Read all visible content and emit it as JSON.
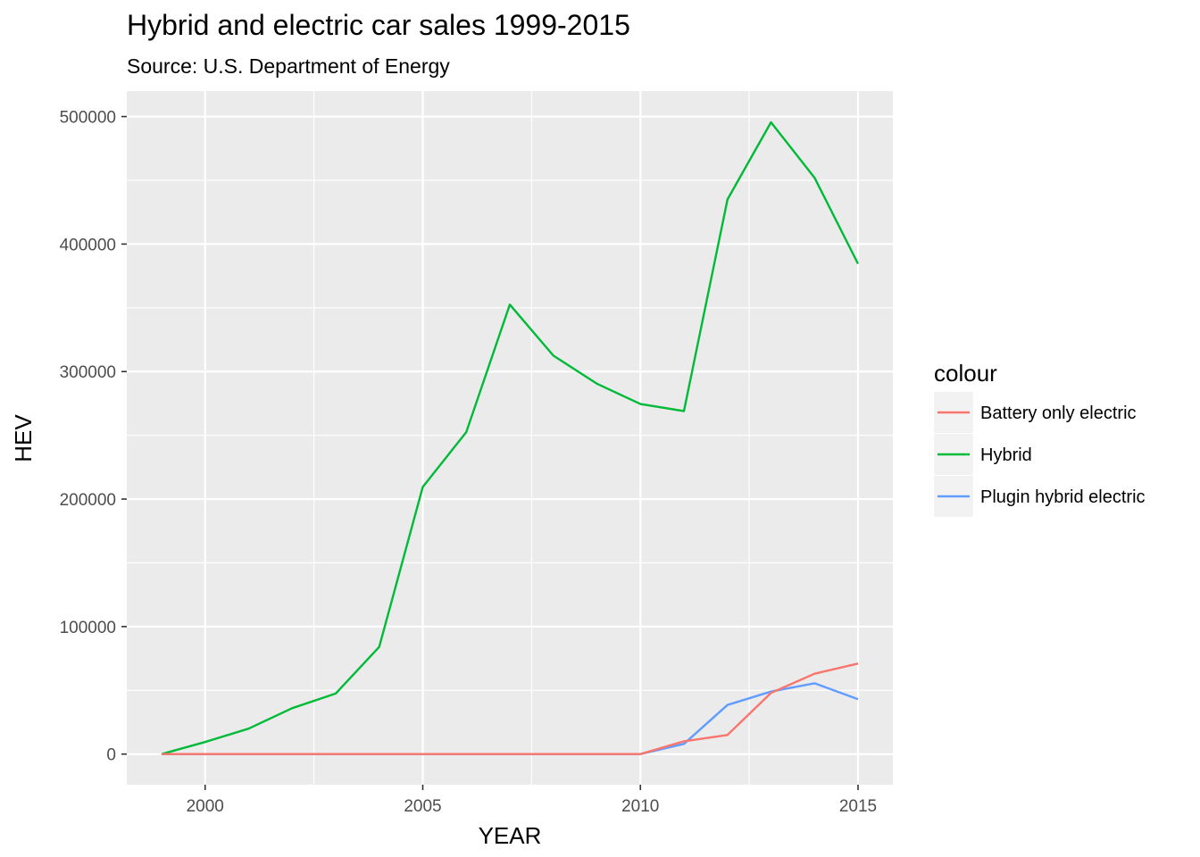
{
  "chart_data": {
    "type": "line",
    "title": "Hybrid and electric car sales 1999-2015",
    "subtitle": "Source:  U.S. Department of Energy",
    "xlabel": "YEAR",
    "ylabel": "HEV",
    "x": [
      1999,
      2000,
      2001,
      2002,
      2003,
      2004,
      2005,
      2006,
      2007,
      2008,
      2009,
      2010,
      2011,
      2012,
      2013,
      2014,
      2015
    ],
    "xlim": [
      1998.2,
      2015.8
    ],
    "ylim": [
      -24000,
      520000
    ],
    "x_ticks": [
      2000,
      2005,
      2010,
      2015
    ],
    "x_tick_labels": [
      "2000",
      "2005",
      "2010",
      "2015"
    ],
    "y_ticks": [
      0,
      100000,
      200000,
      300000,
      400000,
      500000
    ],
    "y_tick_labels": [
      "0",
      "100000",
      "200000",
      "300000",
      "400000",
      "500000"
    ],
    "grid": true,
    "legend": {
      "title": "colour",
      "position": "right",
      "entries": [
        "Battery only electric",
        "Hybrid",
        "Plugin hybrid electric"
      ]
    },
    "series": [
      {
        "name": "Battery only electric",
        "color": "#F8766D",
        "values": [
          0,
          0,
          0,
          0,
          0,
          0,
          0,
          0,
          0,
          0,
          0,
          0,
          10000,
          15000,
          48000,
          63000,
          71000
        ]
      },
      {
        "name": "Hybrid",
        "color": "#00BA38",
        "values": [
          0,
          9500,
          20000,
          36000,
          47500,
          84000,
          209500,
          252500,
          352500,
          312500,
          290500,
          274500,
          269000,
          435000,
          495500,
          452000,
          384500
        ]
      },
      {
        "name": "Plugin hybrid electric",
        "color": "#619CFF",
        "values": [
          0,
          0,
          0,
          0,
          0,
          0,
          0,
          0,
          0,
          0,
          0,
          0,
          8000,
          38500,
          49000,
          55500,
          43000
        ]
      }
    ]
  }
}
